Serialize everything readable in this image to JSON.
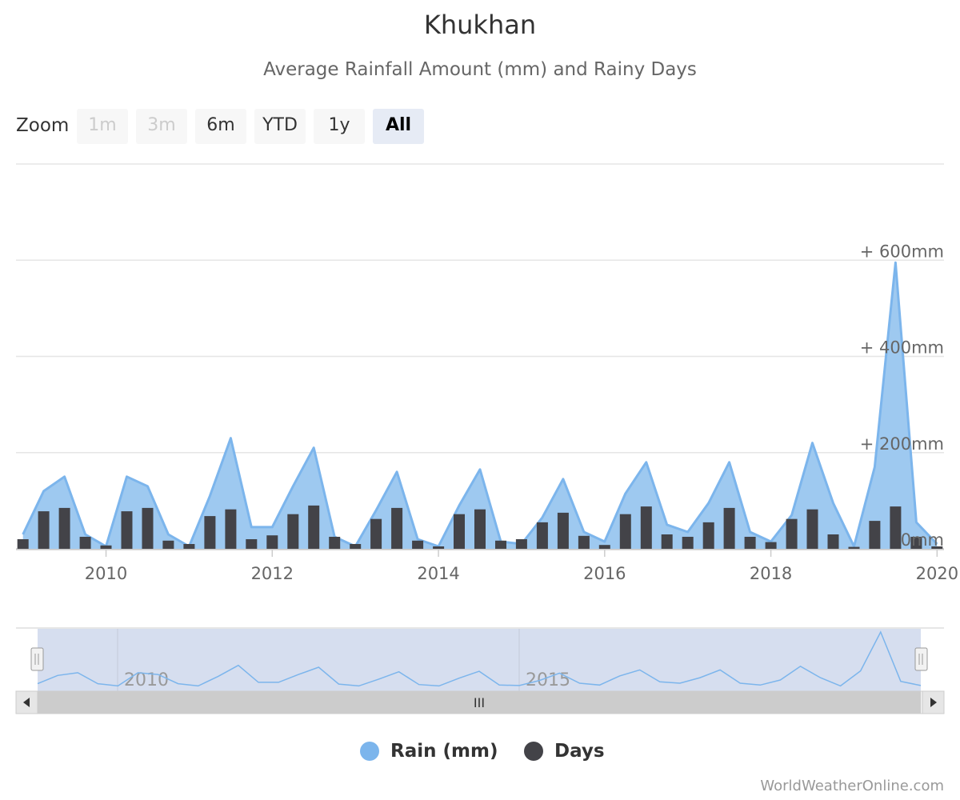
{
  "title": "Khukhan",
  "subtitle": "Average Rainfall Amount (mm) and Rainy Days",
  "zoom": {
    "label": "Zoom",
    "buttons": [
      {
        "label": "1m",
        "state": "disabled"
      },
      {
        "label": "3m",
        "state": "disabled"
      },
      {
        "label": "6m",
        "state": "normal"
      },
      {
        "label": "YTD",
        "state": "normal"
      },
      {
        "label": "1y",
        "state": "normal"
      },
      {
        "label": "All",
        "state": "active"
      }
    ]
  },
  "legend": [
    {
      "label": "Rain (mm)",
      "color": "#7cb5ec"
    },
    {
      "label": "Days",
      "color": "#434348"
    }
  ],
  "navigator": {
    "labels": [
      "2010",
      "2015"
    ],
    "scrollbar_grip": "III"
  },
  "credits": "WorldWeatherOnline.com",
  "colors": {
    "rain_line": "#7cb5ec",
    "rain_fill": "#9ec9f0",
    "days_bar": "#434348",
    "grid": "#e6e6e6",
    "navigator_mask": "#d6deef"
  },
  "chart_data": {
    "type": "area",
    "x": [
      "2009-01",
      "2009-04",
      "2009-07",
      "2009-10",
      "2010-01",
      "2010-04",
      "2010-07",
      "2010-10",
      "2011-01",
      "2011-04",
      "2011-07",
      "2011-10",
      "2012-01",
      "2012-04",
      "2012-07",
      "2012-10",
      "2013-01",
      "2013-04",
      "2013-07",
      "2013-10",
      "2014-01",
      "2014-04",
      "2014-07",
      "2014-10",
      "2015-01",
      "2015-04",
      "2015-07",
      "2015-10",
      "2016-01",
      "2016-04",
      "2016-07",
      "2016-10",
      "2017-01",
      "2017-04",
      "2017-07",
      "2017-10",
      "2018-01",
      "2018-04",
      "2018-07",
      "2018-10",
      "2019-01",
      "2019-04",
      "2019-07",
      "2019-10",
      "2020-01"
    ],
    "series": [
      {
        "name": "Rain (mm)",
        "type": "area",
        "values": [
          30,
          120,
          150,
          30,
          5,
          150,
          130,
          30,
          5,
          110,
          230,
          45,
          45,
          130,
          210,
          25,
          5,
          80,
          160,
          20,
          5,
          90,
          165,
          15,
          10,
          65,
          145,
          35,
          15,
          115,
          180,
          50,
          35,
          95,
          180,
          35,
          15,
          70,
          220,
          95,
          5,
          170,
          595,
          55,
          10
        ]
      },
      {
        "name": "Days",
        "type": "column",
        "values": [
          20,
          78,
          85,
          25,
          7,
          78,
          85,
          17,
          10,
          68,
          82,
          20,
          28,
          72,
          90,
          25,
          10,
          62,
          85,
          17,
          5,
          72,
          82,
          17,
          20,
          55,
          75,
          27,
          8,
          72,
          88,
          30,
          25,
          55,
          85,
          25,
          14,
          62,
          82,
          30,
          4,
          58,
          88,
          25,
          5
        ]
      }
    ],
    "x_ticks": [
      "2010",
      "2012",
      "2014",
      "2016",
      "2018",
      "2020"
    ],
    "y_ticks": [
      "0mm",
      "+ 200mm",
      "+ 400mm",
      "+ 600mm"
    ],
    "y_tick_values": [
      0,
      200,
      400,
      600
    ],
    "ylim": [
      0,
      800
    ],
    "xlim": [
      "2008-12",
      "2020-02"
    ],
    "grid": true,
    "legend_position": "bottom"
  }
}
